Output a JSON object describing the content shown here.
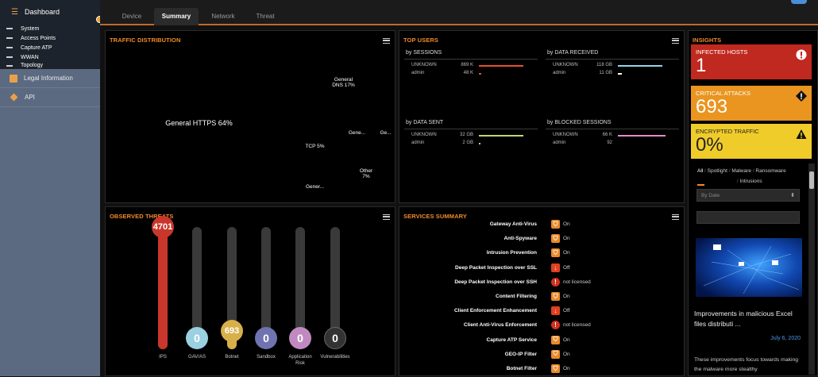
{
  "sidebar": {
    "dashboard": "Dashboard",
    "subitems": [
      "System",
      "Access Points",
      "Capture ATP",
      "WWAN",
      "Topology"
    ],
    "legal": "Legal Information",
    "api": "API"
  },
  "tabs": [
    "Device",
    "Summary",
    "Network",
    "Threat"
  ],
  "active_tab": "Summary",
  "traffic": {
    "title": "TRAFFIC DISTRIBUTION",
    "cells": [
      {
        "label": "General HTTPS 64%",
        "color": "#5fb9a0"
      },
      {
        "label": "General\nDNS 17%",
        "color": "#c98dc2"
      },
      {
        "label": "TCP 5%",
        "color": "#e8a04a"
      },
      {
        "label": "Gene...",
        "color": "#7d84c4"
      },
      {
        "label": "Ge...",
        "color": "#5b9ad0"
      },
      {
        "label": "Other\n7%",
        "color": "#c3d86a"
      },
      {
        "label": "Gener...",
        "color": "#d8337a"
      }
    ]
  },
  "top_users": {
    "title": "TOP USERS",
    "sections": [
      {
        "title": "by SESSIONS",
        "rows": [
          {
            "user": "UNKNOWN",
            "value": "869 K"
          },
          {
            "user": "admin",
            "value": "48 K"
          }
        ]
      },
      {
        "title": "by DATA RECEIVED",
        "rows": [
          {
            "user": "UNKNOWN",
            "value": "118 GB"
          },
          {
            "user": "admin",
            "value": "11 GB"
          }
        ]
      },
      {
        "title": "by DATA SENT",
        "rows": [
          {
            "user": "UNKNOWN",
            "value": "32 GB"
          },
          {
            "user": "admin",
            "value": "2 GB"
          }
        ]
      },
      {
        "title": "by BLOCKED SESSIONS",
        "rows": [
          {
            "user": "UNKNOWN",
            "value": "66 K"
          },
          {
            "user": "admin",
            "value": "92"
          }
        ]
      }
    ]
  },
  "insights": {
    "title": "INSIGHTS",
    "cards": [
      {
        "label": "INFECTED HOSTS",
        "value": "1",
        "color": "#c0291f"
      },
      {
        "label": "CRITICAL ATTACKS",
        "value": "693",
        "color": "#e99520"
      },
      {
        "label": "ENCRYPTED TRAFFIC",
        "value": "0%",
        "color": "#f0cc2a"
      }
    ],
    "filters": [
      "All",
      "Spotlight",
      "Malware",
      "Ransomware",
      "Intrusions"
    ],
    "sort_placeholder": "By Date",
    "article_title": "Improvements in malicious Excel files distributi ...",
    "article_date": "July 6, 2020",
    "article_snippet": "These improvements focus towards making the malware more stealthy"
  },
  "threats": {
    "title": "OBSERVED THREATS",
    "items": [
      {
        "label": "IPS",
        "value": "4701",
        "color": "#c9362b"
      },
      {
        "label": "GAV/AS",
        "value": "0",
        "color": "#9ad0e0"
      },
      {
        "label": "Botnet",
        "value": "693",
        "color": "#d8b04a"
      },
      {
        "label": "Sandbox",
        "value": "0",
        "color": "#6f74b0"
      },
      {
        "label": "Application Risk",
        "value": "0",
        "color": "#c08ac0"
      },
      {
        "label": "Vulnerabilities",
        "value": "0",
        "color": "#333333"
      }
    ]
  },
  "services": {
    "title": "SERVICES SUMMARY",
    "rows": [
      {
        "name": "Gateway Anti-Virus",
        "status": "On",
        "icon": "shield-icon",
        "color": "#e88a2a"
      },
      {
        "name": "Anti-Spyware",
        "status": "On",
        "icon": "shield-icon",
        "color": "#e88a2a"
      },
      {
        "name": "Intrusion Prevention",
        "status": "On",
        "icon": "shield-icon",
        "color": "#e88a2a"
      },
      {
        "name": "Deep Packet Inspection over SSL",
        "status": "Off",
        "icon": "arrow-down-icon",
        "color": "#e0401f"
      },
      {
        "name": "Deep Packet Inspection over SSH",
        "status": "not licensed",
        "icon": "alert-icon",
        "color": "#d0301f"
      },
      {
        "name": "Content Filtering",
        "status": "On",
        "icon": "shield-icon",
        "color": "#e88a2a"
      },
      {
        "name": "Client Enforcement Enhancement",
        "status": "Off",
        "icon": "arrow-down-icon",
        "color": "#e0401f"
      },
      {
        "name": "Client Anti-Virus Enforcement",
        "status": "not licensed",
        "icon": "alert-icon",
        "color": "#d0301f"
      },
      {
        "name": "Capture ATP Service",
        "status": "On",
        "icon": "shield-icon",
        "color": "#e88a2a"
      },
      {
        "name": "GEO-IP Filter",
        "status": "On",
        "icon": "shield-icon",
        "color": "#e88a2a"
      },
      {
        "name": "Botnet Filter",
        "status": "On",
        "icon": "shield-icon",
        "color": "#e88a2a"
      }
    ]
  }
}
